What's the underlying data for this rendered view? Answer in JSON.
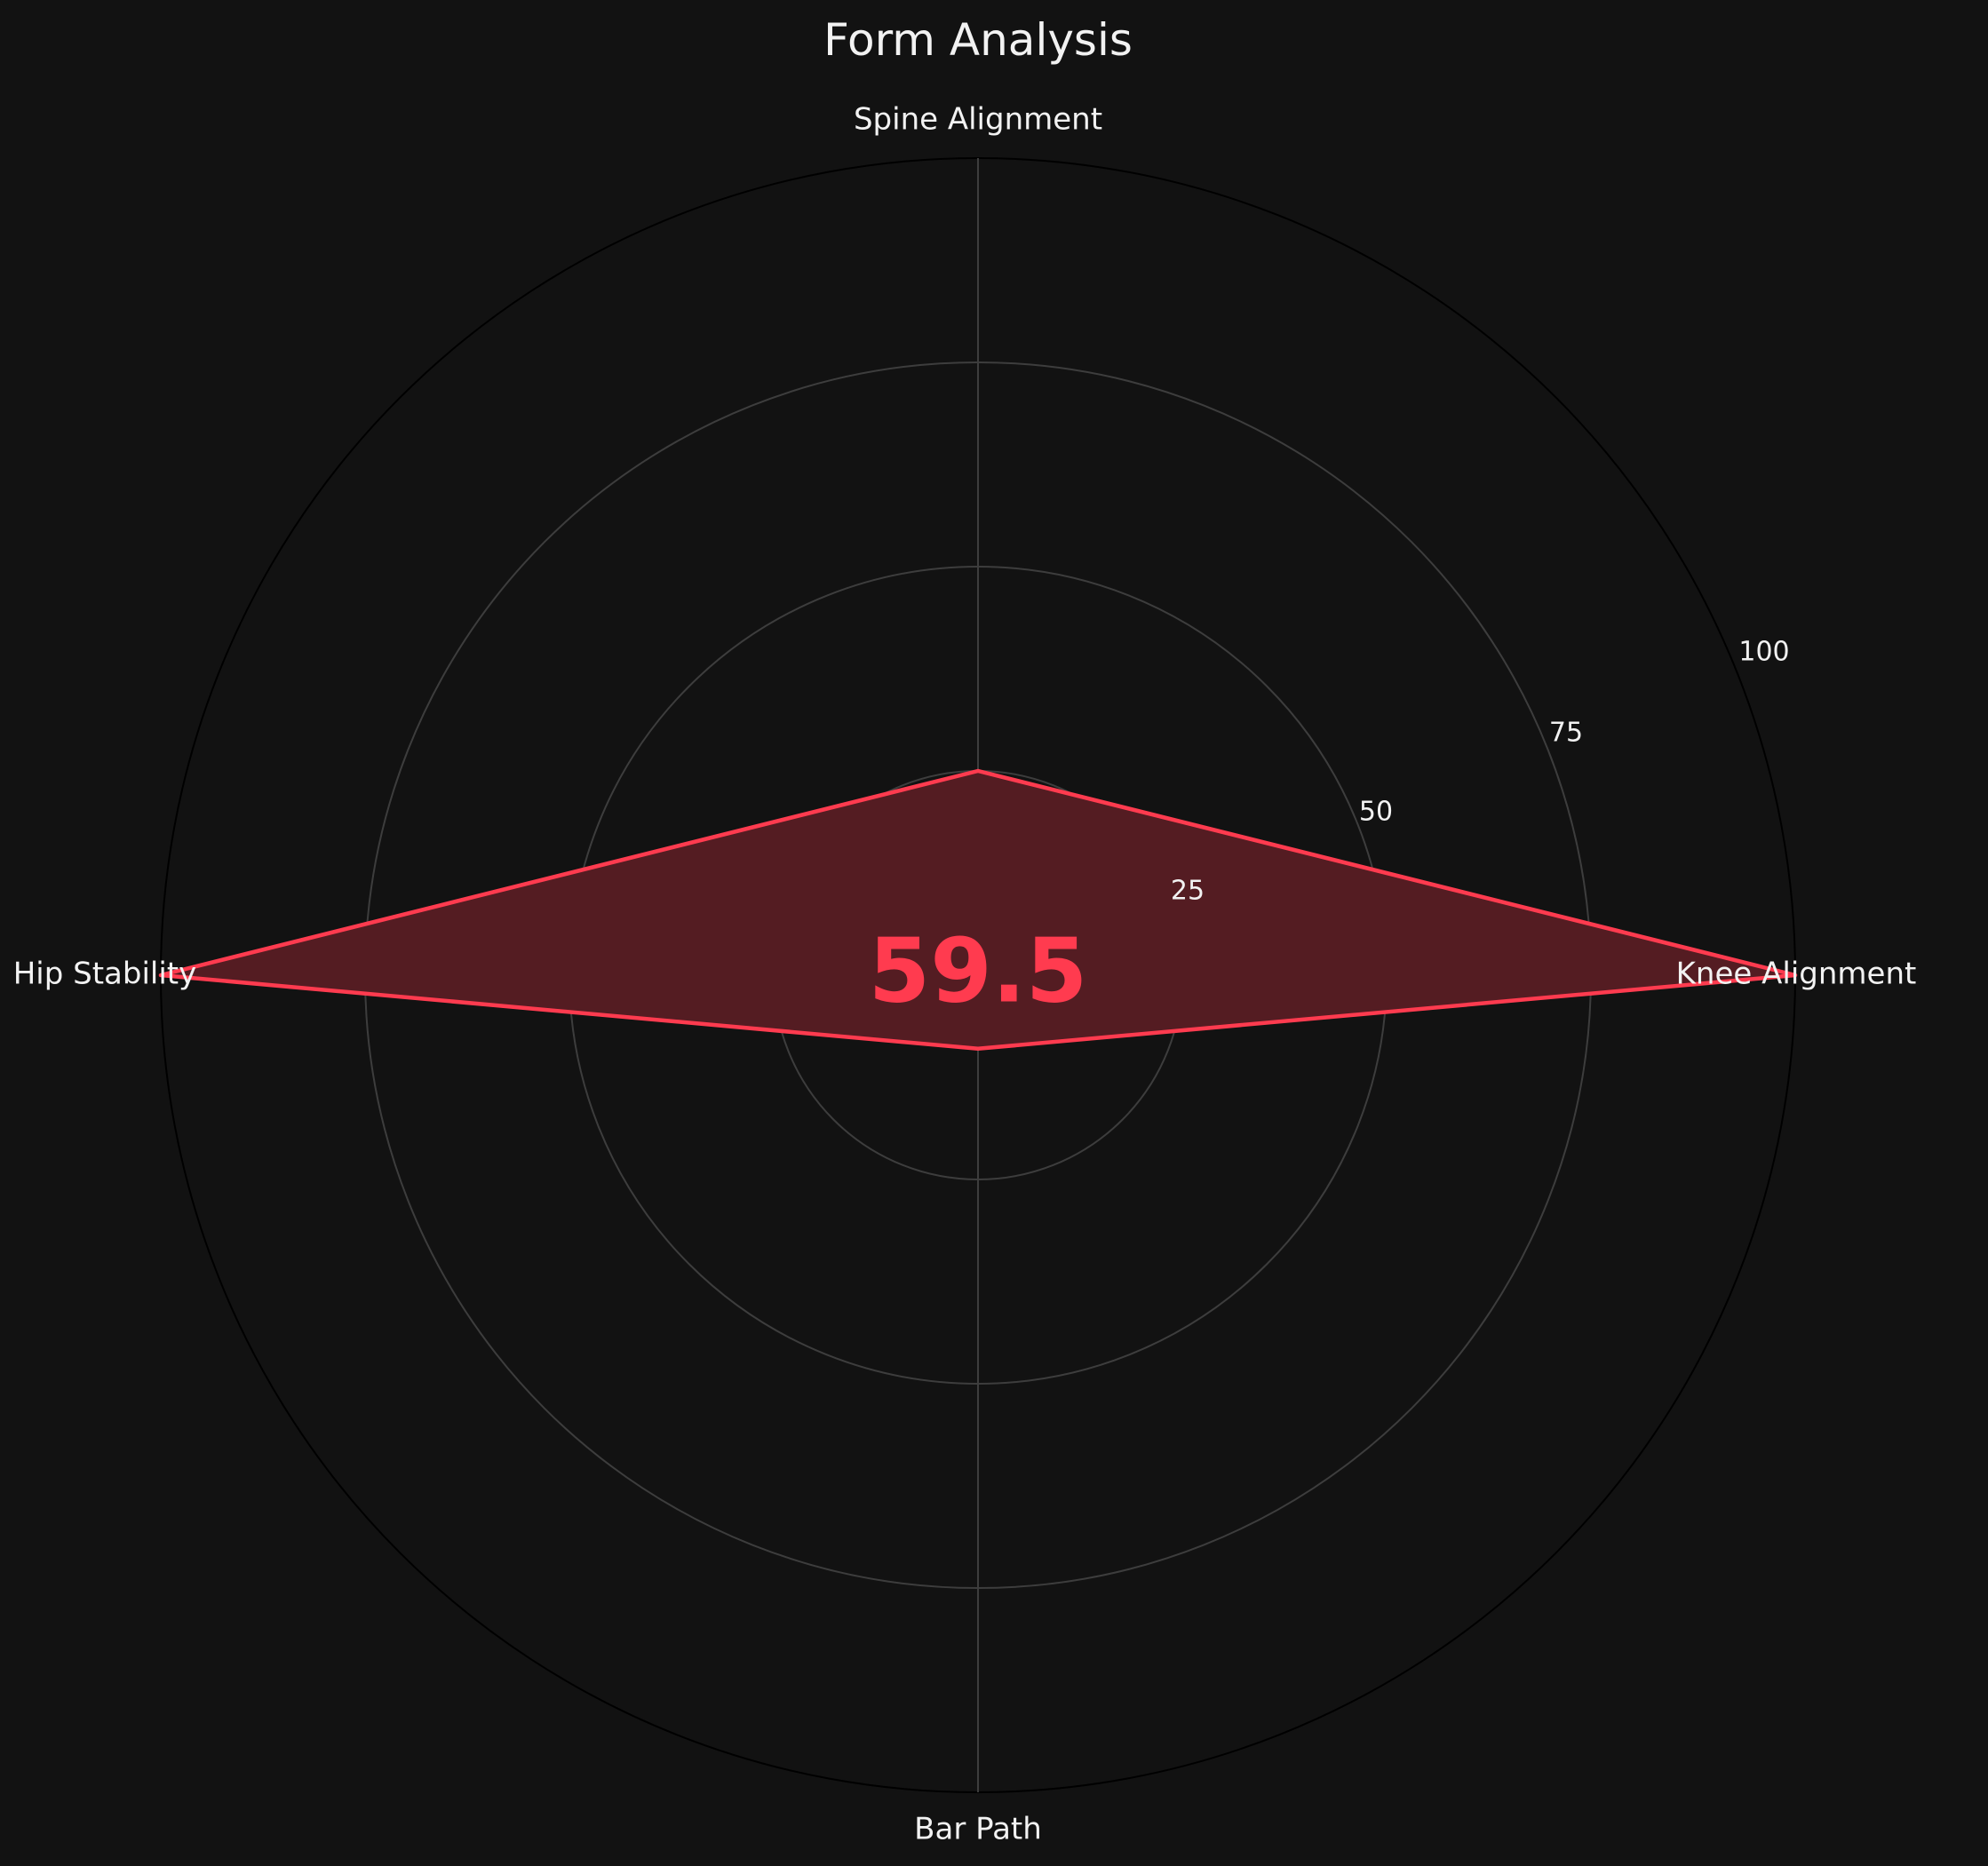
{
  "chart_data": {
    "type": "radar",
    "title": "Form Analysis",
    "categories": [
      "Knee Alignment",
      "Spine Alignment",
      "Hip Stability",
      "Bar Path"
    ],
    "series": [
      {
        "values": [
          100,
          25,
          100,
          9
        ]
      }
    ],
    "radial_ticks": [
      "25",
      "50",
      "75",
      "100"
    ],
    "rlim": [
      0,
      100
    ],
    "grid": true,
    "legend": "none",
    "overall_score": "59.5"
  },
  "colors": {
    "background": "#121212",
    "series_line": "#ff3b4f",
    "series_fill": "#541c22",
    "grid": "#3d3d3d",
    "outer_ring": "#000000",
    "text": "#f2f2f2"
  }
}
